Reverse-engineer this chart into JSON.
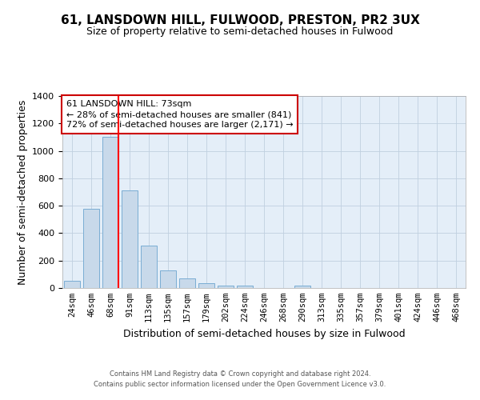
{
  "title": "61, LANSDOWN HILL, FULWOOD, PRESTON, PR2 3UX",
  "subtitle": "Size of property relative to semi-detached houses in Fulwood",
  "xlabel": "Distribution of semi-detached houses by size in Fulwood",
  "ylabel": "Number of semi-detached properties",
  "bar_labels": [
    "24sqm",
    "46sqm",
    "68sqm",
    "91sqm",
    "113sqm",
    "135sqm",
    "157sqm",
    "179sqm",
    "202sqm",
    "224sqm",
    "246sqm",
    "268sqm",
    "290sqm",
    "313sqm",
    "335sqm",
    "357sqm",
    "379sqm",
    "401sqm",
    "424sqm",
    "446sqm",
    "468sqm"
  ],
  "bar_values": [
    50,
    580,
    1100,
    710,
    310,
    130,
    70,
    35,
    20,
    15,
    0,
    0,
    15,
    0,
    0,
    0,
    0,
    0,
    0,
    0,
    0
  ],
  "bar_color": "#c8d9ea",
  "bar_edge_color": "#7aadd4",
  "property_line_color": "red",
  "property_line_bar_index": 2,
  "ylim": [
    0,
    1400
  ],
  "yticks": [
    0,
    200,
    400,
    600,
    800,
    1000,
    1200,
    1400
  ],
  "annotation_title": "61 LANSDOWN HILL: 73sqm",
  "annotation_line1": "← 28% of semi-detached houses are smaller (841)",
  "annotation_line2": "72% of semi-detached houses are larger (2,171) →",
  "annotation_box_color": "white",
  "annotation_box_edge": "#cc0000",
  "grid_color": "#c0d0e0",
  "background_color": "#e4eef8",
  "footer_line1": "Contains HM Land Registry data © Crown copyright and database right 2024.",
  "footer_line2": "Contains public sector information licensed under the Open Government Licence v3.0.",
  "title_fontsize": 11,
  "subtitle_fontsize": 9
}
